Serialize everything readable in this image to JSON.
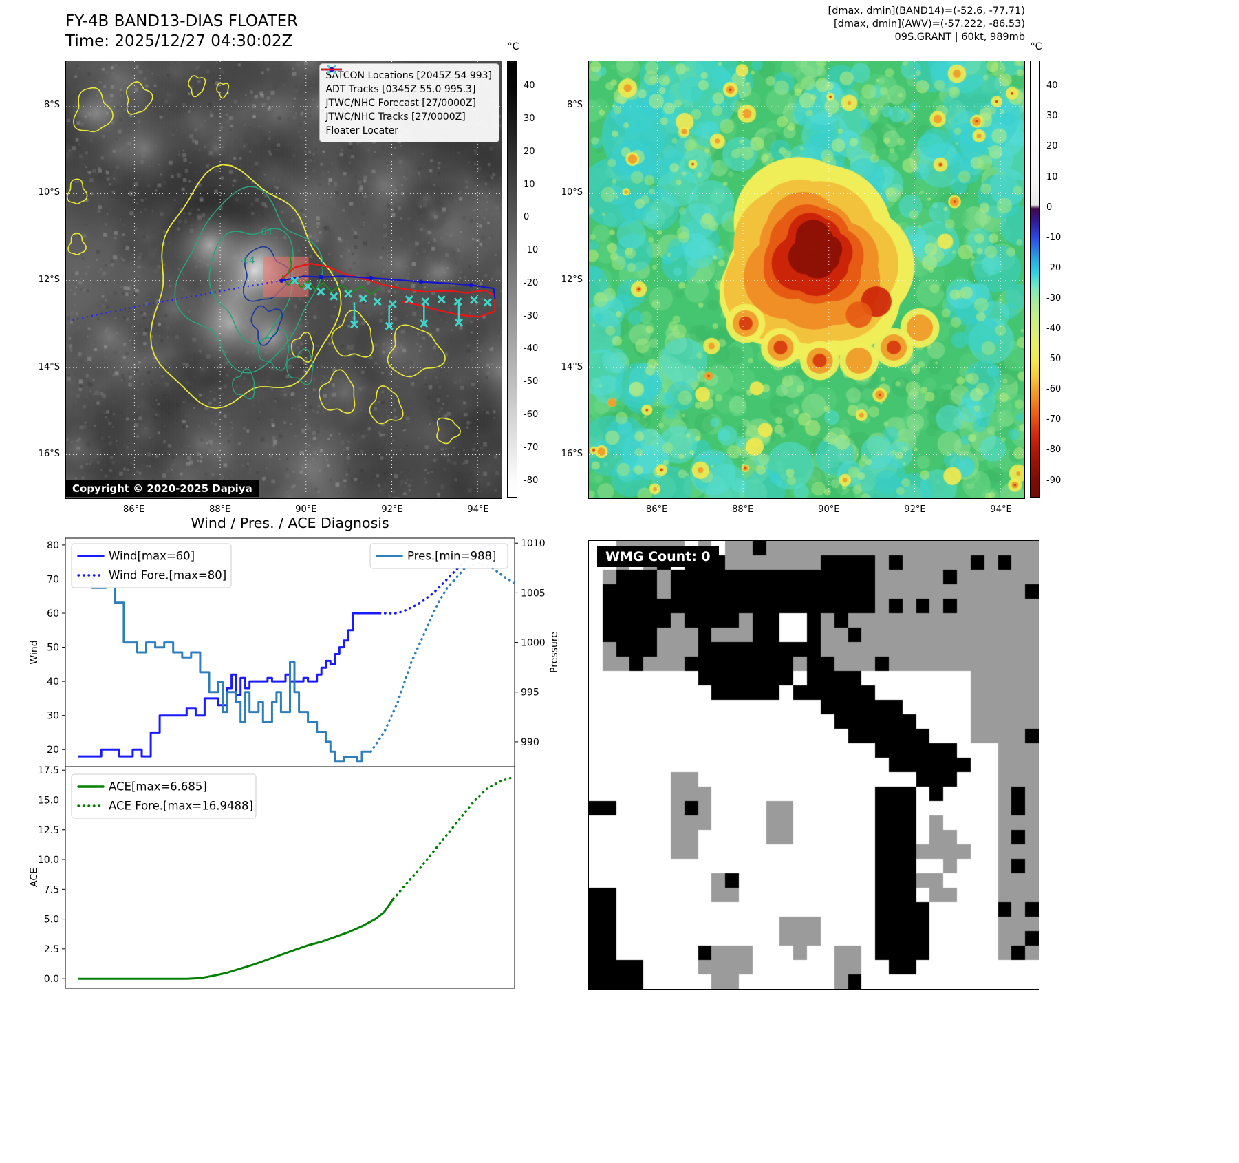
{
  "band13": {
    "title": "FY-4B BAND13-DIAS FLOATER",
    "time": "Time: 2025/12/27 04:30:02Z",
    "copyright": "Copyright © 2020-2025 Dapiya",
    "colorbar_unit": "°C",
    "colorbar_ticks": [
      "40",
      "30",
      "20",
      "10",
      "0",
      "-10",
      "-20",
      "-30",
      "-40",
      "-50",
      "-60",
      "-70",
      "-80"
    ],
    "lat_ticks": [
      "8°S",
      "10°S",
      "12°S",
      "14°S",
      "16°S"
    ],
    "lon_ticks": [
      "86°E",
      "88°E",
      "90°E",
      "92°E",
      "94°E"
    ],
    "contour_labels": [
      "-64",
      "-64"
    ],
    "colors": {
      "satcon": "#3fd6c9",
      "adt": "#1e8c1e",
      "forecast": "#2323ff",
      "track": "#1414cc",
      "floater": "#f01414"
    },
    "legend": [
      {
        "label": "SATCON Locations [2045Z 54 993]",
        "style": "satcon"
      },
      {
        "label": "ADT Tracks [0345Z 55.0 995.3]",
        "style": "adt"
      },
      {
        "label": "JTWC/NHC Forecast [27/0000Z]",
        "style": "forecast"
      },
      {
        "label": "JTWC/NHC Tracks [27/0000Z]",
        "style": "track"
      },
      {
        "label": "Floater Locater",
        "style": "floater"
      }
    ]
  },
  "awv": {
    "title_lines": [
      "[dmax, dmin](BAND14)=(-52.6, -77.71)",
      "[dmax, dmin](AWV)=(-57.222, -86.53)",
      "09S.GRANT | 60kt, 989mb"
    ],
    "colorbar_unit": "°C",
    "colorbar_ticks": [
      "40",
      "30",
      "20",
      "10",
      "0",
      "-10",
      "-20",
      "-30",
      "-40",
      "-50",
      "-60",
      "-70",
      "-80",
      "-90"
    ],
    "lat_ticks": [
      "8°S",
      "10°S",
      "12°S",
      "14°S",
      "16°S"
    ],
    "lon_ticks": [
      "86°E",
      "88°E",
      "90°E",
      "92°E",
      "94°E"
    ]
  },
  "wmg": {
    "label": "WMG Count: 0"
  },
  "chart_data": [
    {
      "type": "line",
      "title": "Wind / Pres. / ACE Diagnosis",
      "ylabel_left": "Wind",
      "ylabel_right": "Pressure",
      "ylim_left": [
        15,
        82
      ],
      "yticks_left": [
        20,
        30,
        40,
        50,
        60,
        70,
        80
      ],
      "ylim_right": [
        987.5,
        1010.5
      ],
      "yticks_right": [
        990,
        995,
        1000,
        1005,
        1010
      ],
      "legend_left": [
        {
          "label": "Wind[max=60]",
          "style": "solid",
          "color": "#1a1aff"
        },
        {
          "label": "Wind Fore.[max=80]",
          "style": "dotted",
          "color": "#1a1aff"
        }
      ],
      "legend_right": [
        {
          "label": "Pres.[min=988]",
          "style": "solid",
          "color": "#2e7ebc"
        }
      ],
      "series": [
        {
          "name": "Wind",
          "axis": "left",
          "style": "solid",
          "color": "#1a1aff",
          "points": [
            [
              3,
              18
            ],
            [
              8,
              18
            ],
            [
              8,
              20
            ],
            [
              12,
              20
            ],
            [
              12,
              18
            ],
            [
              15,
              18
            ],
            [
              15,
              20
            ],
            [
              17,
              20
            ],
            [
              17,
              18
            ],
            [
              19,
              18
            ],
            [
              19,
              25
            ],
            [
              21,
              25
            ],
            [
              21,
              30
            ],
            [
              27,
              30
            ],
            [
              27,
              32
            ],
            [
              29,
              32
            ],
            [
              29,
              30
            ],
            [
              31,
              30
            ],
            [
              31,
              35
            ],
            [
              34,
              35
            ],
            [
              34,
              33
            ],
            [
              36,
              33
            ],
            [
              36,
              38
            ],
            [
              37,
              38
            ],
            [
              37,
              42
            ],
            [
              38,
              42
            ],
            [
              38,
              36
            ],
            [
              39,
              36
            ],
            [
              39,
              41
            ],
            [
              40,
              41
            ],
            [
              40,
              38
            ],
            [
              41,
              38
            ],
            [
              41,
              40
            ],
            [
              45,
              40
            ],
            [
              45,
              41
            ],
            [
              46,
              41
            ],
            [
              46,
              40
            ],
            [
              49,
              40
            ],
            [
              49,
              42
            ],
            [
              50,
              42
            ],
            [
              50,
              40
            ],
            [
              53,
              40
            ],
            [
              53,
              41
            ],
            [
              54,
              41
            ],
            [
              54,
              40
            ],
            [
              56,
              40
            ],
            [
              56,
              42
            ],
            [
              57,
              42
            ],
            [
              57,
              44
            ],
            [
              58,
              44
            ],
            [
              58,
              46
            ],
            [
              59,
              46
            ],
            [
              59,
              45
            ],
            [
              60,
              45
            ],
            [
              60,
              48
            ],
            [
              61,
              48
            ],
            [
              61,
              50
            ],
            [
              62,
              50
            ],
            [
              62,
              52
            ],
            [
              63,
              52
            ],
            [
              63,
              55
            ],
            [
              64,
              55
            ],
            [
              64,
              60
            ],
            [
              70,
              60
            ]
          ]
        },
        {
          "name": "Wind Fore.",
          "axis": "left",
          "style": "dotted",
          "color": "#1a1aff",
          "points": [
            [
              70,
              60
            ],
            [
              74,
              60
            ],
            [
              76,
              61
            ],
            [
              79,
              63
            ],
            [
              82,
              66
            ],
            [
              85,
              70
            ],
            [
              88,
              74
            ],
            [
              91,
              78
            ],
            [
              94,
              80
            ],
            [
              96,
              80
            ]
          ]
        },
        {
          "name": "Pres.",
          "axis": "right",
          "style": "solid",
          "color": "#2e7ebc",
          "points": [
            [
              3,
              1006.5
            ],
            [
              6,
              1006.5
            ],
            [
              6,
              1005.5
            ],
            [
              9,
              1005.5
            ],
            [
              9,
              1006
            ],
            [
              11,
              1006
            ],
            [
              11,
              1004
            ],
            [
              13,
              1004
            ],
            [
              13,
              1000
            ],
            [
              16,
              1000
            ],
            [
              16,
              999
            ],
            [
              18,
              999
            ],
            [
              18,
              1000
            ],
            [
              20,
              1000
            ],
            [
              20,
              999.5
            ],
            [
              22,
              999.5
            ],
            [
              22,
              1000
            ],
            [
              24,
              1000
            ],
            [
              24,
              999
            ],
            [
              26,
              999
            ],
            [
              26,
              998.5
            ],
            [
              28,
              998.5
            ],
            [
              28,
              999
            ],
            [
              30,
              999
            ],
            [
              30,
              997
            ],
            [
              32,
              997
            ],
            [
              32,
              995
            ],
            [
              34,
              995
            ],
            [
              34,
              996
            ],
            [
              35,
              996
            ],
            [
              35,
              993
            ],
            [
              36,
              993
            ],
            [
              36,
              995
            ],
            [
              38,
              995
            ],
            [
              38,
              994
            ],
            [
              39,
              994
            ],
            [
              39,
              992
            ],
            [
              40,
              992
            ],
            [
              40,
              995
            ],
            [
              41,
              995
            ],
            [
              41,
              993
            ],
            [
              43,
              993
            ],
            [
              43,
              994
            ],
            [
              44,
              994
            ],
            [
              44,
              992
            ],
            [
              46,
              992
            ],
            [
              46,
              994
            ],
            [
              47,
              994
            ],
            [
              47,
              995
            ],
            [
              48,
              995
            ],
            [
              48,
              993
            ],
            [
              50,
              993
            ],
            [
              50,
              998
            ],
            [
              51,
              998
            ],
            [
              51,
              995
            ],
            [
              52,
              995
            ],
            [
              52,
              993
            ],
            [
              54,
              993
            ],
            [
              54,
              992
            ],
            [
              56,
              992
            ],
            [
              56,
              991
            ],
            [
              58,
              991
            ],
            [
              58,
              990
            ],
            [
              59,
              990
            ],
            [
              59,
              989
            ],
            [
              60,
              989
            ],
            [
              60,
              988
            ],
            [
              62,
              988
            ],
            [
              62,
              988.5
            ],
            [
              65,
              988.5
            ],
            [
              65,
              988
            ],
            [
              66,
              988
            ],
            [
              66,
              989
            ],
            [
              68,
              989
            ]
          ]
        },
        {
          "name": "Pres. Fore.",
          "axis": "right",
          "style": "dotted",
          "color": "#2e7ebc",
          "points": [
            [
              68,
              989
            ],
            [
              71,
              991
            ],
            [
              74,
              994
            ],
            [
              77,
              998
            ],
            [
              80,
              1001
            ],
            [
              83,
              1004
            ],
            [
              85,
              1005.5
            ],
            [
              87,
              1006.5
            ],
            [
              89,
              1007.5
            ],
            [
              92,
              1008
            ],
            [
              95,
              1007.5
            ],
            [
              98,
              1006.5
            ],
            [
              100,
              1006
            ]
          ]
        }
      ]
    },
    {
      "type": "line",
      "ylabel_left": "ACE",
      "ylim_left": [
        -0.8,
        17.8
      ],
      "yticks_left": [
        0,
        2.5,
        5,
        7.5,
        10,
        12.5,
        15,
        17.5
      ],
      "legend_left": [
        {
          "label": "ACE[max=6.685]",
          "style": "solid",
          "color": "#008000"
        },
        {
          "label": "ACE Fore.[max=16.9488]",
          "style": "dotted",
          "color": "#008000"
        }
      ],
      "series": [
        {
          "name": "ACE",
          "style": "solid",
          "color": "#008000",
          "points": [
            [
              3,
              0
            ],
            [
              10,
              0
            ],
            [
              18,
              0
            ],
            [
              27,
              0
            ],
            [
              30,
              0.05
            ],
            [
              33,
              0.25
            ],
            [
              36,
              0.5
            ],
            [
              39,
              0.85
            ],
            [
              42,
              1.2
            ],
            [
              45,
              1.6
            ],
            [
              48,
              2.0
            ],
            [
              51,
              2.4
            ],
            [
              54,
              2.8
            ],
            [
              57,
              3.1
            ],
            [
              60,
              3.5
            ],
            [
              63,
              3.9
            ],
            [
              66,
              4.4
            ],
            [
              69,
              5.0
            ],
            [
              71,
              5.6
            ],
            [
              73,
              6.685
            ]
          ]
        },
        {
          "name": "ACE Fore.",
          "style": "dotted",
          "color": "#008000",
          "points": [
            [
              73,
              6.685
            ],
            [
              76,
              8.0
            ],
            [
              79,
              9.3
            ],
            [
              82,
              10.7
            ],
            [
              85,
              12.1
            ],
            [
              88,
              13.5
            ],
            [
              91,
              14.9
            ],
            [
              94,
              16.0
            ],
            [
              97,
              16.6
            ],
            [
              100,
              16.9488
            ]
          ]
        }
      ]
    }
  ]
}
